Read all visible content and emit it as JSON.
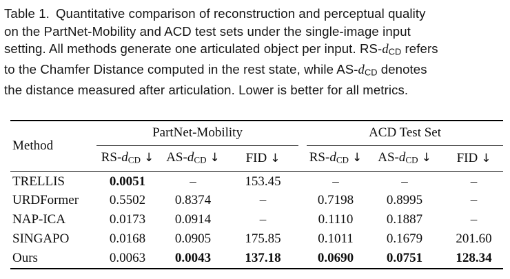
{
  "caption": {
    "label": "Table 1.",
    "l1": "Quantitative comparison of reconstruction and perceptual quality",
    "l2": "on the PartNet-Mobility and ACD test sets under the single-image input",
    "l3_pre": "setting. All methods generate one articulated object per input. RS-",
    "l3_d": "d",
    "l3_sub": "CD",
    "l3_post": " refers",
    "l4_pre": "to the Chamfer Distance computed in the rest state, while AS-",
    "l4_d": "d",
    "l4_sub": "CD",
    "l4_post": " denotes",
    "l5": "the distance measured after articulation. Lower is better for all metrics."
  },
  "table": {
    "method_header": "Method",
    "group_headers": [
      "PartNet-Mobility",
      "ACD Test Set"
    ],
    "columns": [
      {
        "prefix": "RS-",
        "math_d": "d",
        "sub": "CD",
        "arrow": "↓"
      },
      {
        "prefix": "AS-",
        "math_d": "d",
        "sub": "CD",
        "arrow": "↓"
      },
      {
        "prefix": "FID",
        "arrow": "↓"
      },
      {
        "prefix": "RS-",
        "math_d": "d",
        "sub": "CD",
        "arrow": "↓"
      },
      {
        "prefix": "AS-",
        "math_d": "d",
        "sub": "CD",
        "arrow": "↓"
      },
      {
        "prefix": "FID",
        "arrow": "↓"
      }
    ],
    "rows": [
      {
        "method": "TRELLIS",
        "values": [
          "0.0051",
          "–",
          "153.45",
          "–",
          "–",
          "–"
        ]
      },
      {
        "method": "URDFormer",
        "values": [
          "0.5502",
          "0.8374",
          "–",
          "0.7198",
          "0.8995",
          "–"
        ]
      },
      {
        "method": "NAP-ICA",
        "values": [
          "0.0173",
          "0.0914",
          "–",
          "0.1110",
          "0.1887",
          "–"
        ]
      },
      {
        "method": "SINGAPO",
        "values": [
          "0.0168",
          "0.0905",
          "175.85",
          "0.1011",
          "0.1679",
          "201.60"
        ]
      },
      {
        "method": "Ours",
        "values": [
          "0.0063",
          "0.0043",
          "137.18",
          "0.0690",
          "0.0751",
          "128.34"
        ]
      }
    ]
  }
}
